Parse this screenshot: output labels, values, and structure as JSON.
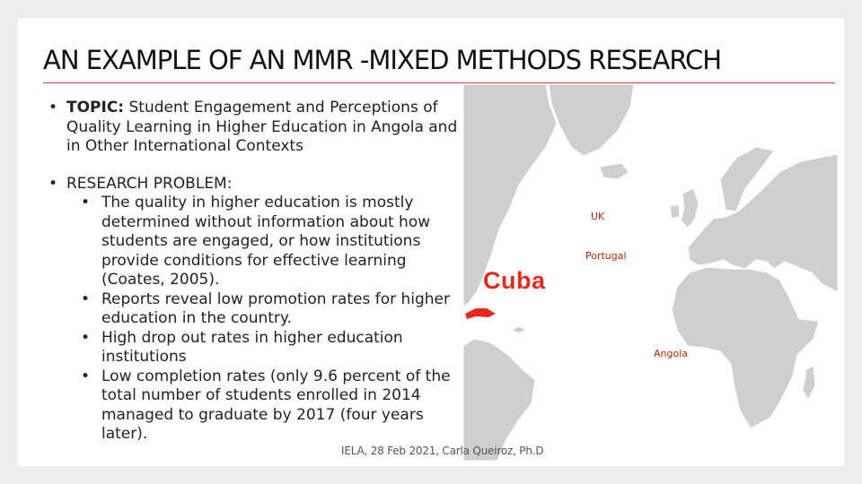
{
  "slide": {
    "title": "AN EXAMPLE OF AN MMR -MIXED METHODS RESEARCH",
    "topic": {
      "label": "TOPIC:",
      "text": "Student Engagement and Perceptions of Quality Learning in Higher Education in Angola and in Other International Contexts"
    },
    "research_problem": {
      "label": "RESEARCH PROBLEM:",
      "items": [
        "The quality in higher education is mostly determined without information about how students are engaged, or how institutions provide conditions for effective learning (Coates, 2005).",
        "Reports reveal low promotion rates for higher education in the country.",
        "High drop out rates in higher education institutions",
        "Low completion rates (only 9.6 percent of the total number of students enrolled in 2014 managed to graduate by 2017 (four years later)."
      ]
    },
    "footer": "IELA, 28 Feb 2021, Carla Queiroz, Ph.D"
  },
  "map": {
    "labels": {
      "uk": "UK",
      "portugal": "Portugal",
      "angola": "Angola",
      "cuba": "Cuba"
    },
    "colors": {
      "land": "#cfcfcf",
      "ocean": "#ffffff",
      "highlight": "#e22b1d",
      "label": "#b0260b"
    }
  },
  "icons": {
    "bullet": "•"
  }
}
